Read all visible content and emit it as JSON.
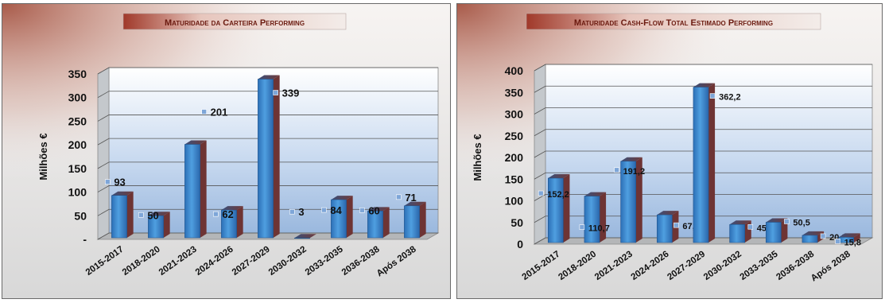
{
  "chart_data": [
    {
      "type": "bar",
      "title": "Maturidade da Carteira Performing",
      "xlabel": "",
      "ylabel": "Milhões €",
      "ylim": [
        0,
        350
      ],
      "yticks": [
        "-",
        "50",
        "100",
        "150",
        "200",
        "250",
        "300",
        "350"
      ],
      "categories": [
        "2015-2017",
        "2018-2020",
        "2021-2023",
        "2024-2026",
        "2027-2029",
        "2030-2032",
        "2033-2035",
        "2036-2038",
        "Após 2038"
      ],
      "values": [
        93,
        50,
        201,
        62,
        339,
        3,
        84,
        60,
        71
      ],
      "data_labels": [
        "93",
        "50",
        "201",
        "62",
        "339",
        "3",
        "84",
        "60",
        "71"
      ],
      "grid": true,
      "bar_color": "#4f9fe0"
    },
    {
      "type": "bar",
      "title": "Maturidade  Cash-Flow Total Estimado Performing",
      "xlabel": "",
      "ylabel": "Milhões €",
      "ylim": [
        0,
        400
      ],
      "yticks": [
        "0",
        "50",
        "100",
        "150",
        "200",
        "250",
        "300",
        "350",
        "400"
      ],
      "categories": [
        "2015-2017",
        "2018-2020",
        "2021-2023",
        "2024-2026",
        "2027-2029",
        "2030-2032",
        "2033-2035",
        "2036-2038",
        "Após 2038"
      ],
      "values": [
        152.2,
        110.7,
        191.2,
        67.6,
        362.2,
        45.4,
        50.5,
        20.3,
        15.8
      ],
      "data_labels": [
        "152,2",
        "110,7",
        "191,2",
        "67,6",
        "362,2",
        "45,4",
        "50,5",
        "20,3",
        "15,8"
      ],
      "grid": true,
      "bar_color": "#4f9fe0"
    }
  ]
}
